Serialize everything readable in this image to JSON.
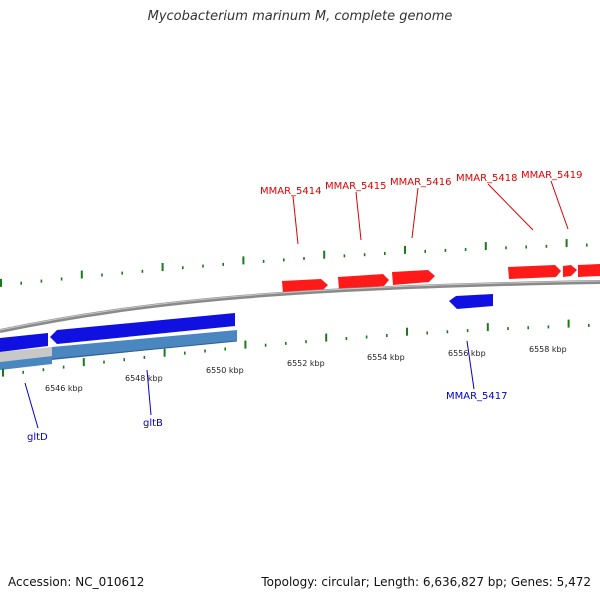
{
  "title": "Mycobacterium marinum M, complete genome",
  "footer": {
    "accession": "Accession: NC_010612",
    "summary": "Topology: circular; Length: 6,636,827 bp; Genes: 5,472"
  },
  "colors": {
    "forward_gene": "#ff1a1a",
    "reverse_gene": "#1010e0",
    "rna_track": "#4a86c0",
    "backbone": "#8a8a8a",
    "tick": "#1a7a1a",
    "label_forward": "#e00000",
    "label_reverse": "#0000cc"
  },
  "ticks": {
    "major_labels": [
      "6546 kbp",
      "6548 kbp",
      "6550 kbp",
      "6552 kbp",
      "6554 kbp",
      "6556 kbp",
      "6558 kbp"
    ]
  },
  "gene_labels": {
    "forward": [
      "MMAR_5414",
      "MMAR_5415",
      "MMAR_5416",
      "MMAR_5418",
      "MMAR_5419"
    ],
    "reverse": [
      "MMAR_5417",
      "gltB",
      "gltD"
    ]
  }
}
